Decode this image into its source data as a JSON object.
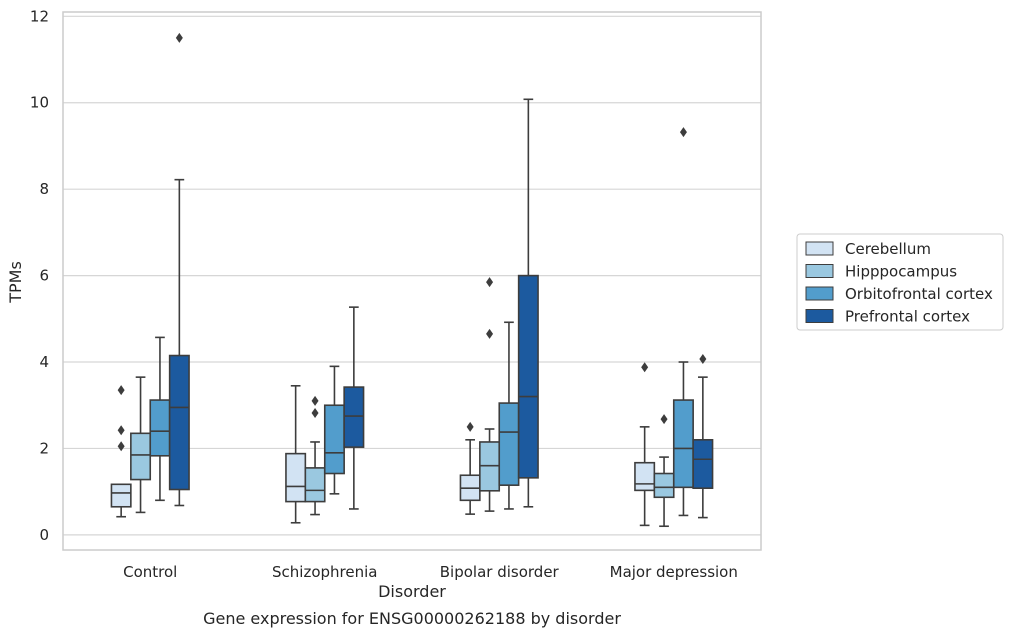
{
  "chart_data": {
    "type": "box",
    "caption": "Gene expression for ENSG00000262188 by disorder",
    "xlabel": "Disorder",
    "ylabel": "TPMs",
    "ylim": [
      -0.35,
      12.1
    ],
    "yticks": [
      0,
      2,
      4,
      6,
      8,
      10,
      12
    ],
    "grid": true,
    "legend_position": "right",
    "categories": [
      "Control",
      "Schizophrenia",
      "Bipolar disorder",
      "Major depression"
    ],
    "series": [
      {
        "name": "Cerebellum",
        "color": "#d2e3f3",
        "boxes": [
          {
            "whislo": 0.42,
            "q1": 0.65,
            "med": 0.97,
            "q3": 1.17,
            "whishi": 1.17,
            "fliers": [
              2.05,
              2.42,
              3.35
            ]
          },
          {
            "whislo": 0.28,
            "q1": 0.77,
            "med": 1.12,
            "q3": 1.88,
            "whishi": 3.45,
            "fliers": []
          },
          {
            "whislo": 0.48,
            "q1": 0.8,
            "med": 1.08,
            "q3": 1.38,
            "whishi": 2.2,
            "fliers": [
              2.5
            ]
          },
          {
            "whislo": 0.22,
            "q1": 1.03,
            "med": 1.18,
            "q3": 1.67,
            "whishi": 2.5,
            "fliers": [
              3.88
            ]
          }
        ]
      },
      {
        "name": "Hipppocampus",
        "color": "#9ac8e0",
        "boxes": [
          {
            "whislo": 0.52,
            "q1": 1.28,
            "med": 1.85,
            "q3": 2.35,
            "whishi": 3.65,
            "fliers": []
          },
          {
            "whislo": 0.47,
            "q1": 0.77,
            "med": 1.03,
            "q3": 1.55,
            "whishi": 2.15,
            "fliers": [
              2.82,
              3.1
            ]
          },
          {
            "whislo": 0.55,
            "q1": 1.02,
            "med": 1.6,
            "q3": 2.15,
            "whishi": 2.45,
            "fliers": [
              4.65,
              5.85
            ]
          },
          {
            "whislo": 0.2,
            "q1": 0.87,
            "med": 1.1,
            "q3": 1.42,
            "whishi": 1.8,
            "fliers": [
              2.68
            ]
          }
        ]
      },
      {
        "name": "Orbitofrontal cortex",
        "color": "#529dcc",
        "boxes": [
          {
            "whislo": 0.8,
            "q1": 1.83,
            "med": 2.4,
            "q3": 3.12,
            "whishi": 4.57,
            "fliers": []
          },
          {
            "whislo": 0.95,
            "q1": 1.42,
            "med": 1.9,
            "q3": 3.0,
            "whishi": 3.9,
            "fliers": []
          },
          {
            "whislo": 0.6,
            "q1": 1.15,
            "med": 2.38,
            "q3": 3.05,
            "whishi": 4.92,
            "fliers": []
          },
          {
            "whislo": 0.45,
            "q1": 1.1,
            "med": 2.0,
            "q3": 3.12,
            "whishi": 4.0,
            "fliers": [
              9.32
            ]
          }
        ]
      },
      {
        "name": "Prefrontal cortex",
        "color": "#1c5a9f",
        "boxes": [
          {
            "whislo": 0.68,
            "q1": 1.05,
            "med": 2.95,
            "q3": 4.15,
            "whishi": 8.22,
            "fliers": [
              11.5
            ]
          },
          {
            "whislo": 0.6,
            "q1": 2.03,
            "med": 2.75,
            "q3": 3.42,
            "whishi": 5.27,
            "fliers": []
          },
          {
            "whislo": 0.65,
            "q1": 1.32,
            "med": 3.2,
            "q3": 6.0,
            "whishi": 10.08,
            "fliers": []
          },
          {
            "whislo": 0.4,
            "q1": 1.08,
            "med": 1.75,
            "q3": 2.2,
            "whishi": 3.65,
            "fliers": [
              4.07
            ]
          }
        ]
      }
    ]
  }
}
